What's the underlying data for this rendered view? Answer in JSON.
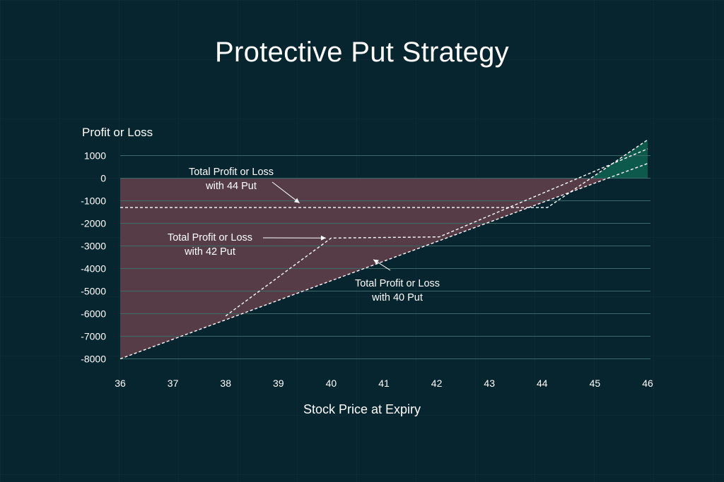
{
  "colors": {
    "background": "#07252f",
    "loss_fill": "#553c47",
    "profit_fill": "#0d5a4c",
    "gridline": "#3c6a6a",
    "line": "#ffffff",
    "text": "#ffffff"
  },
  "chart_data": {
    "type": "line",
    "title": "Protective Put Strategy",
    "xlabel": "Stock Price at Expiry",
    "ylabel": "Profit or Loss",
    "xlim": [
      36,
      46
    ],
    "ylim": [
      -8000,
      1000
    ],
    "x_ticks": [
      "36",
      "37",
      "38",
      "39",
      "40",
      "41",
      "42",
      "43",
      "44",
      "45",
      "46"
    ],
    "y_ticks": [
      "1000",
      "0",
      "-1000",
      "-2000",
      "-3000",
      "-4000",
      "-5000",
      "-6000",
      "-7000",
      "-8000"
    ],
    "y_tick_values": [
      1000,
      0,
      -1000,
      -2000,
      -3000,
      -4000,
      -5000,
      -6000,
      -7000,
      -8000
    ],
    "grid": true,
    "series": [
      {
        "name": "Total Profit or Loss with 44 Put",
        "points": [
          [
            36,
            -1300
          ],
          [
            44.1,
            -1300
          ],
          [
            46,
            1700
          ]
        ]
      },
      {
        "name": "Total Profit or Loss with 42 Put",
        "points": [
          [
            38,
            -6100
          ],
          [
            40,
            -2650
          ],
          [
            42.05,
            -2600
          ],
          [
            46,
            1300
          ]
        ]
      },
      {
        "name": "Total Profit or Loss with 40 Put",
        "points": [
          [
            36,
            -8000
          ],
          [
            46,
            650
          ]
        ]
      }
    ],
    "annotations": [
      {
        "line1": "Total Profit or Loss",
        "line2": "with 44 Put",
        "target": [
          39.4,
          -1100
        ]
      },
      {
        "line1": "Total Profit or Loss",
        "line2": "with 42 Put",
        "target": [
          39.9,
          -2650
        ]
      },
      {
        "line1": "Total Profit or Loss",
        "line2": "with 40 Put",
        "target": [
          40.8,
          -3600
        ]
      }
    ]
  }
}
